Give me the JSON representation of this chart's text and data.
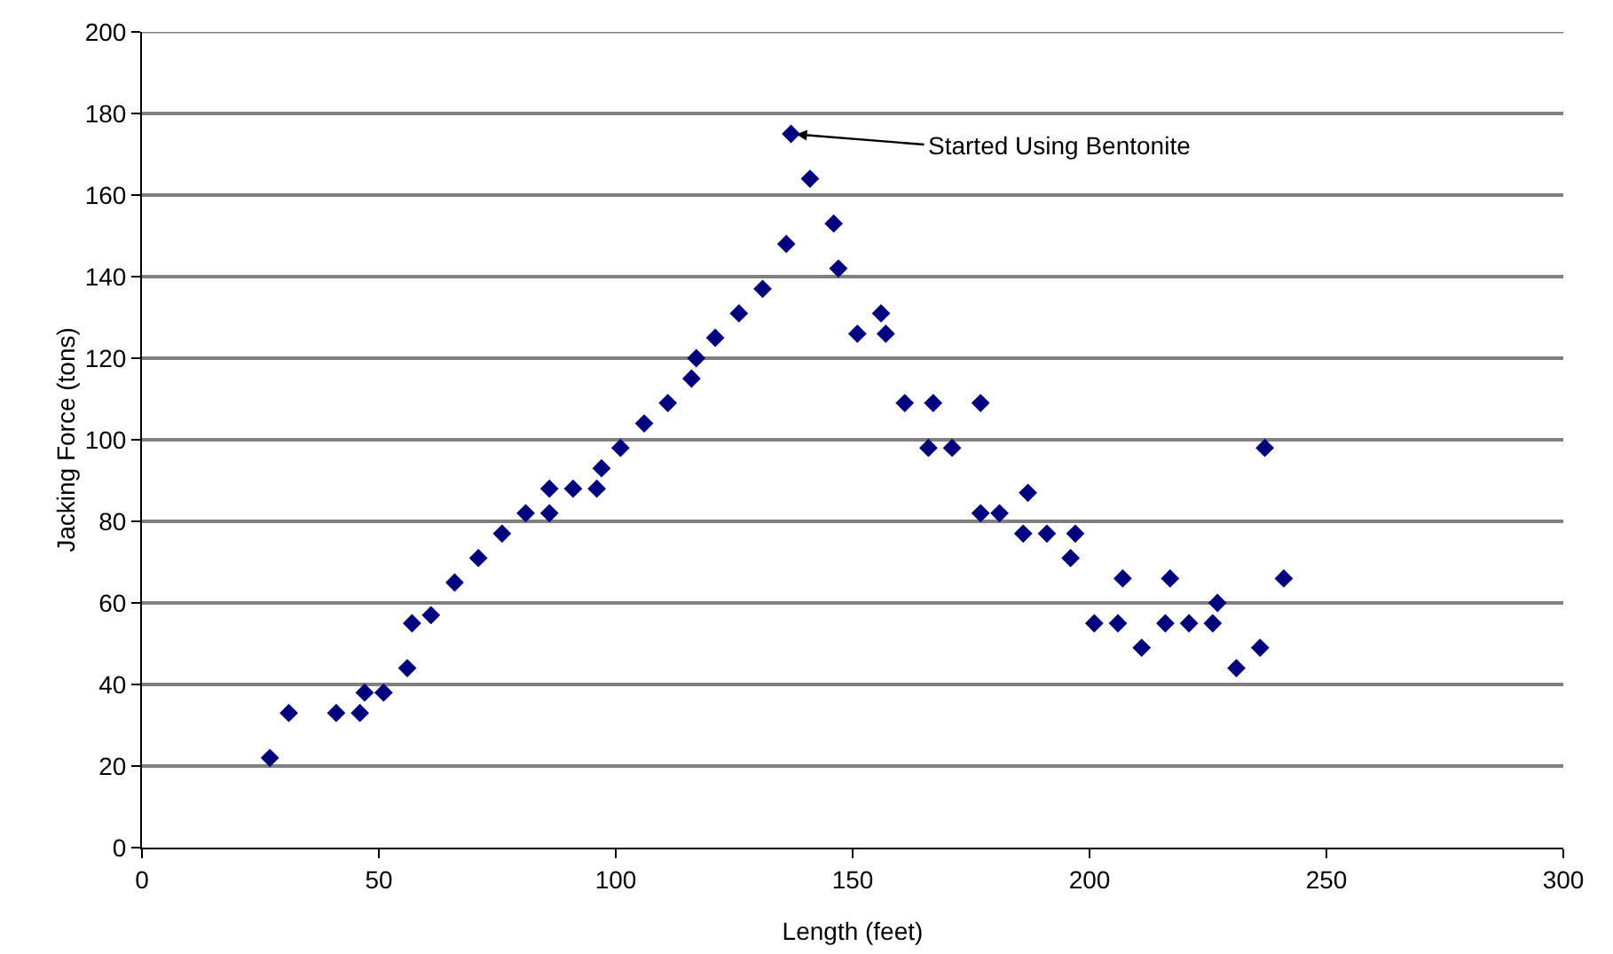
{
  "chart_data": {
    "type": "scatter",
    "xlabel": "Length (feet)",
    "ylabel": "Jacking Force (tons)",
    "x": [
      27,
      31,
      41,
      46,
      47,
      51,
      56,
      57,
      61,
      66,
      71,
      76,
      81,
      86,
      86,
      91,
      96,
      97,
      101,
      106,
      111,
      116,
      117,
      121,
      126,
      131,
      136,
      137,
      141,
      146,
      147,
      151,
      156,
      157,
      161,
      166,
      167,
      171,
      177,
      177,
      181,
      186,
      187,
      191,
      196,
      197,
      201,
      206,
      207,
      211,
      216,
      217,
      221,
      226,
      227,
      231,
      236,
      237,
      241
    ],
    "series": [
      {
        "color": "#00007f",
        "values": [
          22,
          33,
          33,
          33,
          38,
          38,
          44,
          55,
          57,
          65,
          71,
          77,
          82,
          88,
          82,
          88,
          88,
          93,
          98,
          104,
          109,
          115,
          120,
          125,
          131,
          137,
          148,
          175,
          164,
          153,
          142,
          126,
          131,
          126,
          109,
          98,
          109,
          98,
          82,
          109,
          82,
          77,
          87,
          77,
          71,
          77,
          55,
          55,
          66,
          49,
          55,
          66,
          55,
          55,
          60,
          44,
          49,
          98,
          66
        ]
      }
    ],
    "xlim": [
      0,
      300
    ],
    "xticks": [
      0,
      50,
      100,
      150,
      200,
      250,
      300
    ],
    "ylim": [
      0,
      200
    ],
    "yticks": [
      0,
      20,
      40,
      60,
      80,
      100,
      120,
      140,
      160,
      180,
      200
    ],
    "grid": "y",
    "marker": "diamond",
    "annotations": [
      {
        "text": "Started Using Bentonite",
        "x": 137,
        "y": 175
      }
    ]
  }
}
